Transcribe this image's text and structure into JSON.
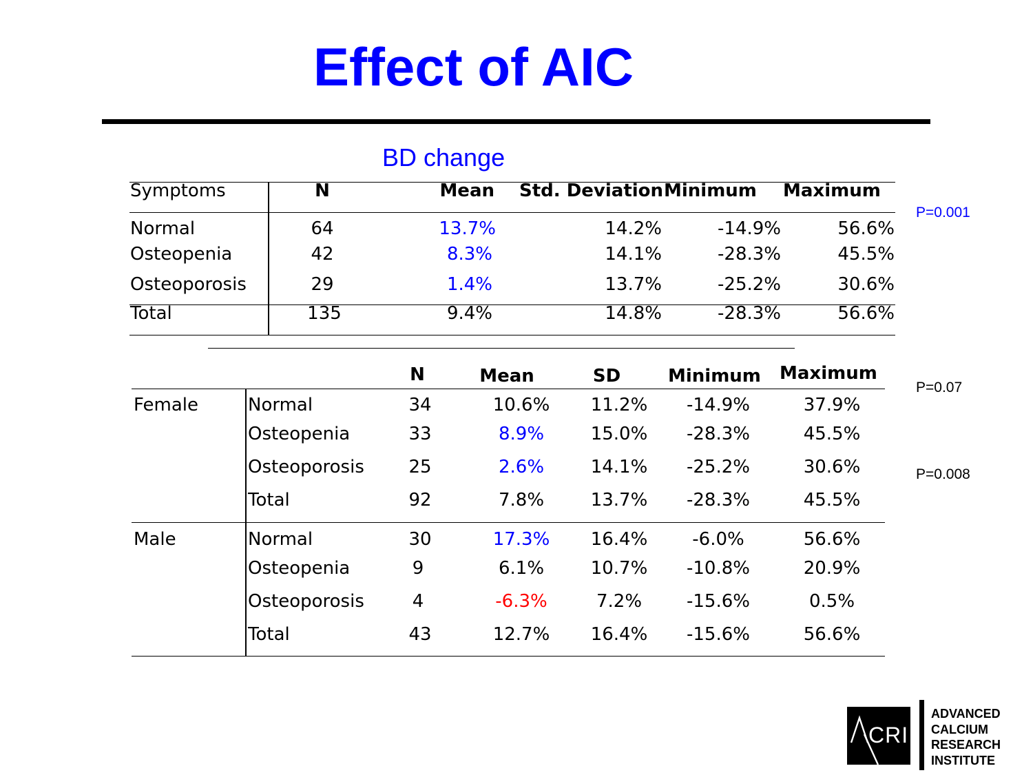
{
  "title": "Effect of AIC",
  "subtitle": "BD change",
  "table1": {
    "headers": [
      "Symptoms",
      "N",
      "Mean",
      "Std. Deviation",
      "Minimum",
      "Maximum"
    ],
    "rows": [
      {
        "label": "Normal",
        "n": "64",
        "mean": "13.7%",
        "sd": "14.2%",
        "min": "-14.9%",
        "max": "56.6%"
      },
      {
        "label": "Osteopenia",
        "n": "42",
        "mean": "8.3%",
        "sd": "14.1%",
        "min": "-28.3%",
        "max": "45.5%"
      },
      {
        "label": "Osteoporosis",
        "n": "29",
        "mean": "1.4%",
        "sd": "13.7%",
        "min": "-25.2%",
        "max": "30.6%"
      },
      {
        "label": "Total",
        "n": "135",
        "mean": "9.4%",
        "sd": "14.8%",
        "min": "-28.3%",
        "max": "56.6%"
      }
    ],
    "pvalue": "P=0.001"
  },
  "table2": {
    "headers": [
      "N",
      "Mean",
      "SD",
      "Minimum",
      "Maximum"
    ],
    "groups": [
      {
        "name": "Female",
        "rows": [
          {
            "label": "Normal",
            "n": "34",
            "mean": "10.6%",
            "sd": "11.2%",
            "min": "-14.9%",
            "max": "37.9%"
          },
          {
            "label": "Osteopenia",
            "n": "33",
            "mean": "8.9%",
            "sd": "15.0%",
            "min": "-28.3%",
            "max": "45.5%"
          },
          {
            "label": "Osteoporosis",
            "n": "25",
            "mean": "2.6%",
            "sd": "14.1%",
            "min": "-25.2%",
            "max": "30.6%"
          },
          {
            "label": "Total",
            "n": "92",
            "mean": "7.8%",
            "sd": "13.7%",
            "min": "-28.3%",
            "max": "45.5%"
          }
        ]
      },
      {
        "name": "Male",
        "rows": [
          {
            "label": "Normal",
            "n": "30",
            "mean": "17.3%",
            "sd": "16.4%",
            "min": "-6.0%",
            "max": "56.6%"
          },
          {
            "label": "Osteopenia",
            "n": "9",
            "mean": "6.1%",
            "sd": "10.7%",
            "min": "-10.8%",
            "max": "20.9%"
          },
          {
            "label": "Osteoporosis",
            "n": "4",
            "mean": "-6.3%",
            "sd": "7.2%",
            "min": "-15.6%",
            "max": "0.5%"
          },
          {
            "label": "Total",
            "n": "43",
            "mean": "12.7%",
            "sd": "16.4%",
            "min": "-15.6%",
            "max": "56.6%"
          }
        ]
      }
    ],
    "pvalue_female": "P=0.07",
    "pvalue_male": "P=0.008"
  },
  "colors": {
    "highlight_blue": "#0000ff",
    "highlight_red": "#ff0000"
  },
  "logo": {
    "mark": "ACRI",
    "lines": [
      "ADVANCED",
      "CALCIUM",
      "RESEARCH",
      "INSTITUTE"
    ]
  }
}
